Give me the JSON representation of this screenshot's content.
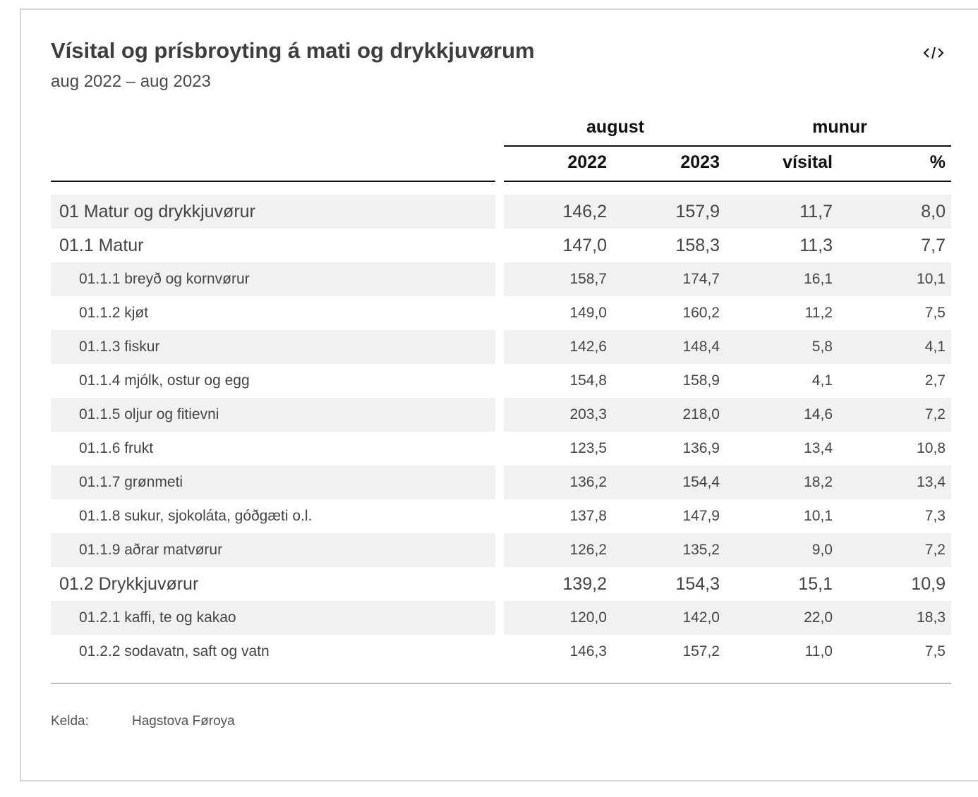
{
  "header": {
    "title": "Vísital og prísbroyting á mati og drykkjuvørum",
    "subtitle": "aug 2022 – aug 2023",
    "embed_icon": "code-embed-icon"
  },
  "chart_data": {
    "type": "table",
    "title": "Vísital og prísbroyting á mati og drykkjuvørum",
    "subtitle": "aug 2022 – aug 2023",
    "column_groups": [
      {
        "label": "august",
        "columns": [
          "2022",
          "2023"
        ]
      },
      {
        "label": "munur",
        "columns": [
          "vísital",
          "%"
        ]
      }
    ],
    "columns": [
      "2022",
      "2023",
      "vísital",
      "%"
    ],
    "rows": [
      {
        "label": "01 Matur og drykkjuvørur",
        "level": 1,
        "shaded": true,
        "values": [
          "146,2",
          "157,9",
          "11,7",
          "8,0"
        ]
      },
      {
        "label": "01.1 Matur",
        "level": 2,
        "shaded": false,
        "values": [
          "147,0",
          "158,3",
          "11,3",
          "7,7"
        ]
      },
      {
        "label": "01.1.1 breyð og kornvørur",
        "level": 3,
        "shaded": true,
        "values": [
          "158,7",
          "174,7",
          "16,1",
          "10,1"
        ]
      },
      {
        "label": "01.1.2 kjøt",
        "level": 3,
        "shaded": false,
        "values": [
          "149,0",
          "160,2",
          "11,2",
          "7,5"
        ]
      },
      {
        "label": "01.1.3 fiskur",
        "level": 3,
        "shaded": true,
        "values": [
          "142,6",
          "148,4",
          "5,8",
          "4,1"
        ]
      },
      {
        "label": "01.1.4 mjólk, ostur og egg",
        "level": 3,
        "shaded": false,
        "values": [
          "154,8",
          "158,9",
          "4,1",
          "2,7"
        ]
      },
      {
        "label": "01.1.5 oljur og fitievni",
        "level": 3,
        "shaded": true,
        "values": [
          "203,3",
          "218,0",
          "14,6",
          "7,2"
        ]
      },
      {
        "label": "01.1.6 frukt",
        "level": 3,
        "shaded": false,
        "values": [
          "123,5",
          "136,9",
          "13,4",
          "10,8"
        ]
      },
      {
        "label": "01.1.7 grønmeti",
        "level": 3,
        "shaded": true,
        "values": [
          "136,2",
          "154,4",
          "18,2",
          "13,4"
        ]
      },
      {
        "label": "01.1.8 sukur, sjokoláta, góðgæti o.l.",
        "level": 3,
        "shaded": false,
        "values": [
          "137,8",
          "147,9",
          "10,1",
          "7,3"
        ]
      },
      {
        "label": "01.1.9 aðrar matvørur",
        "level": 3,
        "shaded": true,
        "values": [
          "126,2",
          "135,2",
          "9,0",
          "7,2"
        ]
      },
      {
        "label": "01.2 Drykkjuvørur",
        "level": 2,
        "shaded": false,
        "values": [
          "139,2",
          "154,3",
          "15,1",
          "10,9"
        ]
      },
      {
        "label": "01.2.1 kaffi, te og kakao",
        "level": 3,
        "shaded": true,
        "values": [
          "120,0",
          "142,0",
          "22,0",
          "18,3"
        ]
      },
      {
        "label": "01.2.2 sodavatn, saft og vatn",
        "level": 3,
        "shaded": false,
        "values": [
          "146,3",
          "157,2",
          "11,0",
          "7,5"
        ]
      }
    ]
  },
  "footer": {
    "source_label": "Kelda:",
    "source_value": "Hagstova Føroya"
  },
  "colors": {
    "row_shade": "#f1f1f1",
    "rule": "#111111",
    "text": "#444444"
  }
}
